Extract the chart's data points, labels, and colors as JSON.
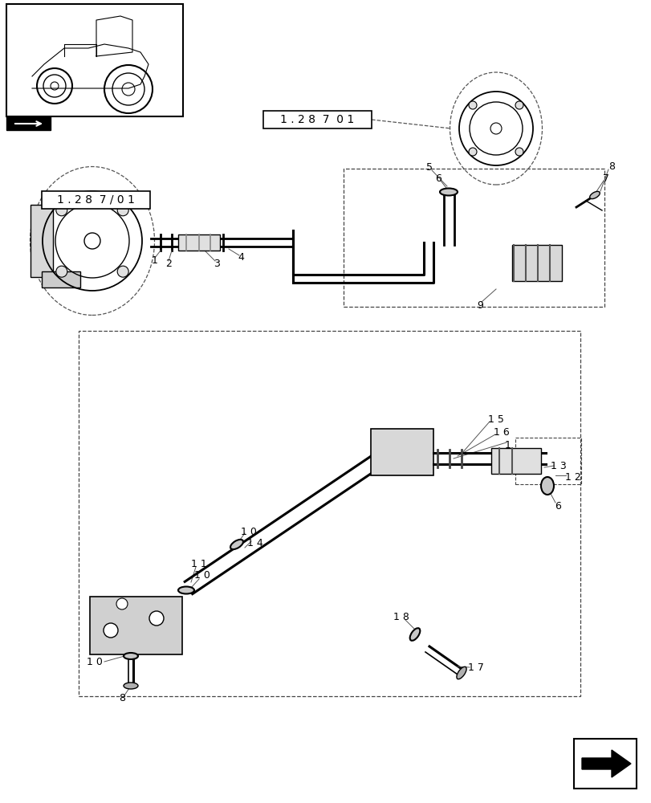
{
  "background_color": "#ffffff",
  "fig_width": 8.12,
  "fig_height": 10.0,
  "dpi": 100,
  "ref1": "1 . 2 8  7 / 0 1",
  "ref2": "1 . 2 8  7  0 1",
  "line_color": "#000000",
  "dashed_color": "#555555"
}
